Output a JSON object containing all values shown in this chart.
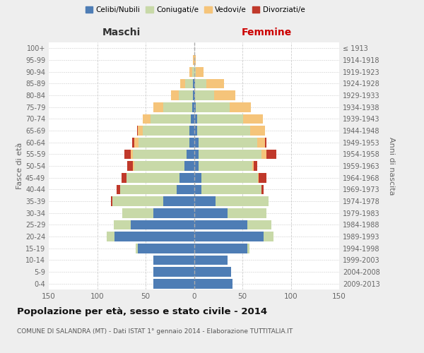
{
  "age_groups": [
    "0-4",
    "5-9",
    "10-14",
    "15-19",
    "20-24",
    "25-29",
    "30-34",
    "35-39",
    "40-44",
    "45-49",
    "50-54",
    "55-59",
    "60-64",
    "65-69",
    "70-74",
    "75-79",
    "80-84",
    "85-89",
    "90-94",
    "95-99",
    "100+"
  ],
  "birth_years": [
    "2009-2013",
    "2004-2008",
    "1999-2003",
    "1994-1998",
    "1989-1993",
    "1984-1988",
    "1979-1983",
    "1974-1978",
    "1969-1973",
    "1964-1968",
    "1959-1963",
    "1954-1958",
    "1949-1953",
    "1944-1948",
    "1939-1943",
    "1934-1938",
    "1929-1933",
    "1924-1928",
    "1919-1923",
    "1914-1918",
    "≤ 1913"
  ],
  "maschi": {
    "celibi": [
      42,
      42,
      42,
      58,
      82,
      65,
      42,
      32,
      18,
      15,
      10,
      8,
      5,
      5,
      3,
      2,
      1,
      1,
      0,
      0,
      0
    ],
    "coniugati": [
      0,
      0,
      0,
      2,
      8,
      18,
      32,
      52,
      58,
      55,
      52,
      55,
      52,
      48,
      42,
      30,
      15,
      8,
      2,
      0,
      0
    ],
    "vedovi": [
      0,
      0,
      0,
      0,
      0,
      0,
      0,
      0,
      0,
      0,
      1,
      2,
      5,
      5,
      8,
      10,
      8,
      5,
      3,
      1,
      0
    ],
    "divorziati": [
      0,
      0,
      0,
      0,
      0,
      0,
      0,
      2,
      4,
      5,
      6,
      7,
      2,
      1,
      0,
      0,
      0,
      0,
      0,
      0,
      0
    ]
  },
  "femmine": {
    "nubili": [
      40,
      38,
      35,
      55,
      72,
      55,
      35,
      22,
      8,
      8,
      5,
      5,
      5,
      3,
      3,
      2,
      1,
      1,
      0,
      0,
      0
    ],
    "coniugate": [
      0,
      0,
      0,
      2,
      10,
      25,
      40,
      55,
      62,
      58,
      55,
      65,
      60,
      55,
      48,
      35,
      20,
      12,
      2,
      0,
      0
    ],
    "vedove": [
      0,
      0,
      0,
      0,
      0,
      0,
      0,
      0,
      0,
      1,
      2,
      5,
      8,
      15,
      20,
      22,
      22,
      18,
      8,
      2,
      0
    ],
    "divorziate": [
      0,
      0,
      0,
      0,
      0,
      0,
      0,
      0,
      2,
      8,
      3,
      10,
      2,
      0,
      0,
      0,
      0,
      0,
      0,
      0,
      0
    ]
  },
  "colors": {
    "celibi": "#4e7db5",
    "coniugati": "#c8d9a8",
    "vedovi": "#f5c47a",
    "divorziati": "#c0392b"
  },
  "title": "Popolazione per età, sesso e stato civile - 2014",
  "subtitle": "COMUNE DI SALANDRA (MT) - Dati ISTAT 1° gennaio 2014 - Elaborazione TUTTITALIA.IT",
  "xlabel_left": "Maschi",
  "xlabel_right": "Femmine",
  "ylabel_left": "Fasce di età",
  "ylabel_right": "Anni di nascita",
  "xlim": 150,
  "bg_color": "#eeeeee",
  "plot_bg_color": "#ffffff",
  "grid_color": "#cccccc"
}
